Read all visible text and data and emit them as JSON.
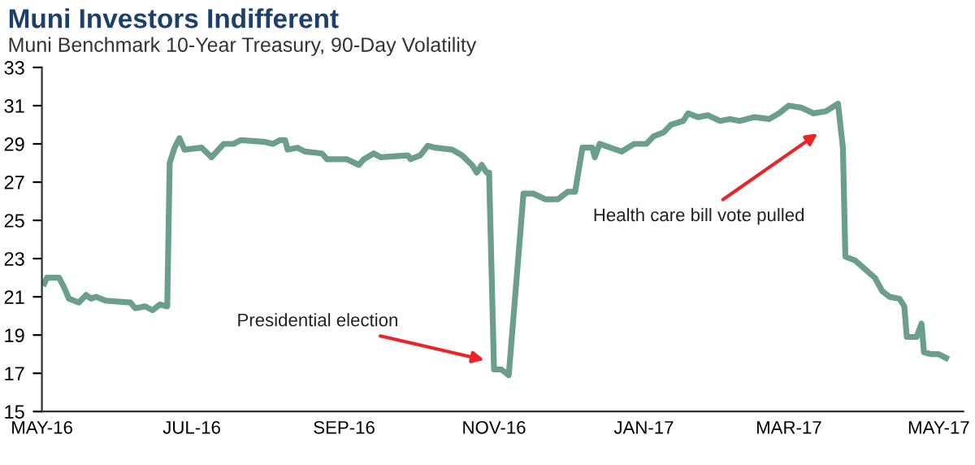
{
  "chart_data": {
    "type": "line",
    "title": "Muni Investors Indifferent",
    "subtitle": "Muni Benchmark 10-Year Treasury, 90-Day Volatility",
    "x": [
      "2016-05-02",
      "2016-05-03",
      "2016-05-08",
      "2016-05-10",
      "2016-05-12",
      "2016-05-16",
      "2016-05-19",
      "2016-05-21",
      "2016-05-23",
      "2016-05-27",
      "2016-06-06",
      "2016-06-08",
      "2016-06-12",
      "2016-06-15",
      "2016-06-18",
      "2016-06-21",
      "2016-06-22",
      "2016-06-24",
      "2016-06-26",
      "2016-06-28",
      "2016-07-05",
      "2016-07-09",
      "2016-07-14",
      "2016-07-18",
      "2016-07-21",
      "2016-07-31",
      "2016-08-03",
      "2016-08-06",
      "2016-08-08",
      "2016-08-09",
      "2016-08-13",
      "2016-08-16",
      "2016-08-23",
      "2016-08-25",
      "2016-09-02",
      "2016-09-07",
      "2016-09-09",
      "2016-09-13",
      "2016-09-16",
      "2016-09-27",
      "2016-09-28",
      "2016-10-02",
      "2016-10-05",
      "2016-10-08",
      "2016-10-15",
      "2016-10-19",
      "2016-10-23",
      "2016-10-25",
      "2016-10-27",
      "2016-10-29",
      "2016-10-30",
      "2016-11-01",
      "2016-11-04",
      "2016-11-07",
      "2016-11-13",
      "2016-11-17",
      "2016-11-22",
      "2016-11-27",
      "2016-12-01",
      "2016-12-04",
      "2016-12-07",
      "2016-12-11",
      "2016-12-12",
      "2016-12-14",
      "2016-12-23",
      "2016-12-28",
      "2017-01-02",
      "2017-01-05",
      "2017-01-09",
      "2017-01-12",
      "2017-01-17",
      "2017-01-19",
      "2017-01-23",
      "2017-01-27",
      "2017-02-01",
      "2017-02-05",
      "2017-02-09",
      "2017-02-15",
      "2017-02-21",
      "2017-02-25",
      "2017-03-01",
      "2017-03-06",
      "2017-03-11",
      "2017-03-16",
      "2017-03-21",
      "2017-03-23",
      "2017-03-24",
      "2017-03-28",
      "2017-04-05",
      "2017-04-08",
      "2017-04-11",
      "2017-04-15",
      "2017-04-17",
      "2017-04-18",
      "2017-04-22",
      "2017-04-24",
      "2017-04-25",
      "2017-04-28",
      "2017-05-01",
      "2017-05-04"
    ],
    "series": [
      {
        "color": "#6b9f8b",
        "values": [
          21.7,
          22.0,
          22.0,
          21.5,
          20.9,
          20.7,
          21.1,
          20.9,
          21.0,
          20.8,
          20.7,
          20.4,
          20.5,
          20.3,
          20.6,
          20.5,
          28.0,
          28.8,
          29.3,
          28.7,
          28.8,
          28.3,
          29.0,
          29.0,
          29.2,
          29.1,
          29.0,
          29.2,
          29.2,
          28.7,
          28.8,
          28.6,
          28.5,
          28.2,
          28.2,
          27.9,
          28.2,
          28.5,
          28.3,
          28.4,
          28.2,
          28.4,
          28.9,
          28.8,
          28.7,
          28.4,
          27.9,
          27.5,
          27.9,
          27.5,
          27.5,
          17.2,
          17.2,
          16.9,
          26.4,
          26.4,
          26.1,
          26.1,
          26.5,
          26.5,
          28.8,
          28.8,
          28.3,
          29.0,
          28.6,
          29.0,
          29.0,
          29.4,
          29.6,
          30.0,
          30.2,
          30.6,
          30.4,
          30.5,
          30.2,
          30.3,
          30.2,
          30.4,
          30.3,
          30.6,
          31.0,
          30.9,
          30.6,
          30.7,
          31.1,
          28.8,
          23.1,
          22.9,
          22.0,
          21.3,
          21.0,
          20.9,
          20.5,
          18.9,
          18.9,
          19.6,
          18.1,
          18.0,
          18.0,
          17.8
        ]
      }
    ],
    "xlim": [
      "2016-05-01",
      "2017-05-11"
    ],
    "xticks": [
      {
        "value": "2016-05-01",
        "label": "MAY-16"
      },
      {
        "value": "2016-07-01",
        "label": "JUL-16"
      },
      {
        "value": "2016-09-01",
        "label": "SEP-16"
      },
      {
        "value": "2016-11-01",
        "label": "NOV-16"
      },
      {
        "value": "2017-01-01",
        "label": "JAN-17"
      },
      {
        "value": "2017-03-01",
        "label": "MAR-17"
      },
      {
        "value": "2017-05-01",
        "label": "MAY-17"
      }
    ],
    "ylim": [
      15,
      33
    ],
    "yticks": [
      15,
      17,
      19,
      21,
      23,
      25,
      27,
      29,
      31,
      33
    ],
    "grid": false,
    "legend": false,
    "marker": "none",
    "line_style": "solid",
    "annotations": [
      {
        "text": "Presidential election",
        "x": "2016-10-28",
        "y": 17.7
      },
      "Health care bill vote pulled"
    ]
  }
}
